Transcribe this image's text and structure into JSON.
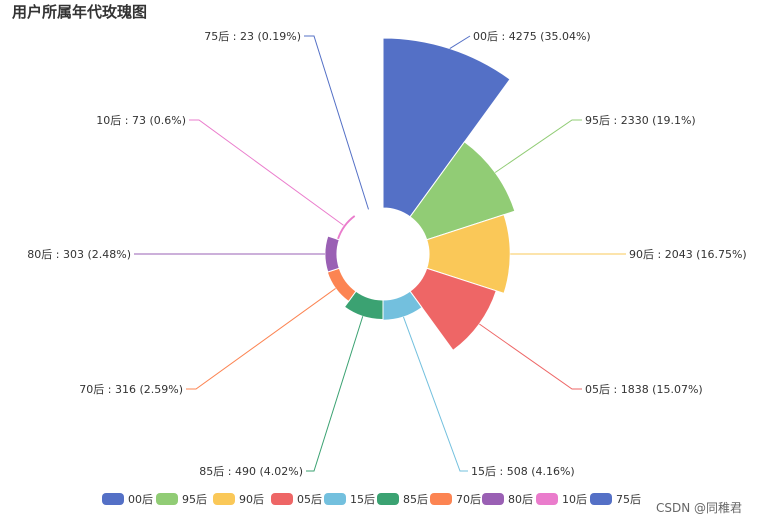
{
  "chart_data": {
    "type": "pie",
    "subtype": "rose",
    "title": "用户所属年代玫瑰图",
    "items": [
      {
        "name": "00后",
        "value": 4275,
        "percent": "35.04%",
        "color": "#5470c6"
      },
      {
        "name": "95后",
        "value": 2330,
        "percent": "19.1%",
        "color": "#91cc75"
      },
      {
        "name": "90后",
        "value": 2043,
        "percent": "16.75%",
        "color": "#fac858"
      },
      {
        "name": "05后",
        "value": 1838,
        "percent": "15.07%",
        "color": "#ee6666"
      },
      {
        "name": "15后",
        "value": 508,
        "percent": "4.16%",
        "color": "#73c0de"
      },
      {
        "name": "85后",
        "value": 490,
        "percent": "4.02%",
        "color": "#3ba272"
      },
      {
        "name": "70后",
        "value": 316,
        "percent": "2.59%",
        "color": "#fc8452"
      },
      {
        "name": "80后",
        "value": 303,
        "percent": "2.48%",
        "color": "#9a60b4"
      },
      {
        "name": "10后",
        "value": 73,
        "percent": "0.6%",
        "color": "#ea7ccc"
      },
      {
        "name": "75后",
        "value": 23,
        "percent": "0.19%",
        "color": "#5470c6"
      }
    ],
    "legend": {
      "position": "bottom"
    }
  },
  "watermark": "CSDN @同稚君"
}
